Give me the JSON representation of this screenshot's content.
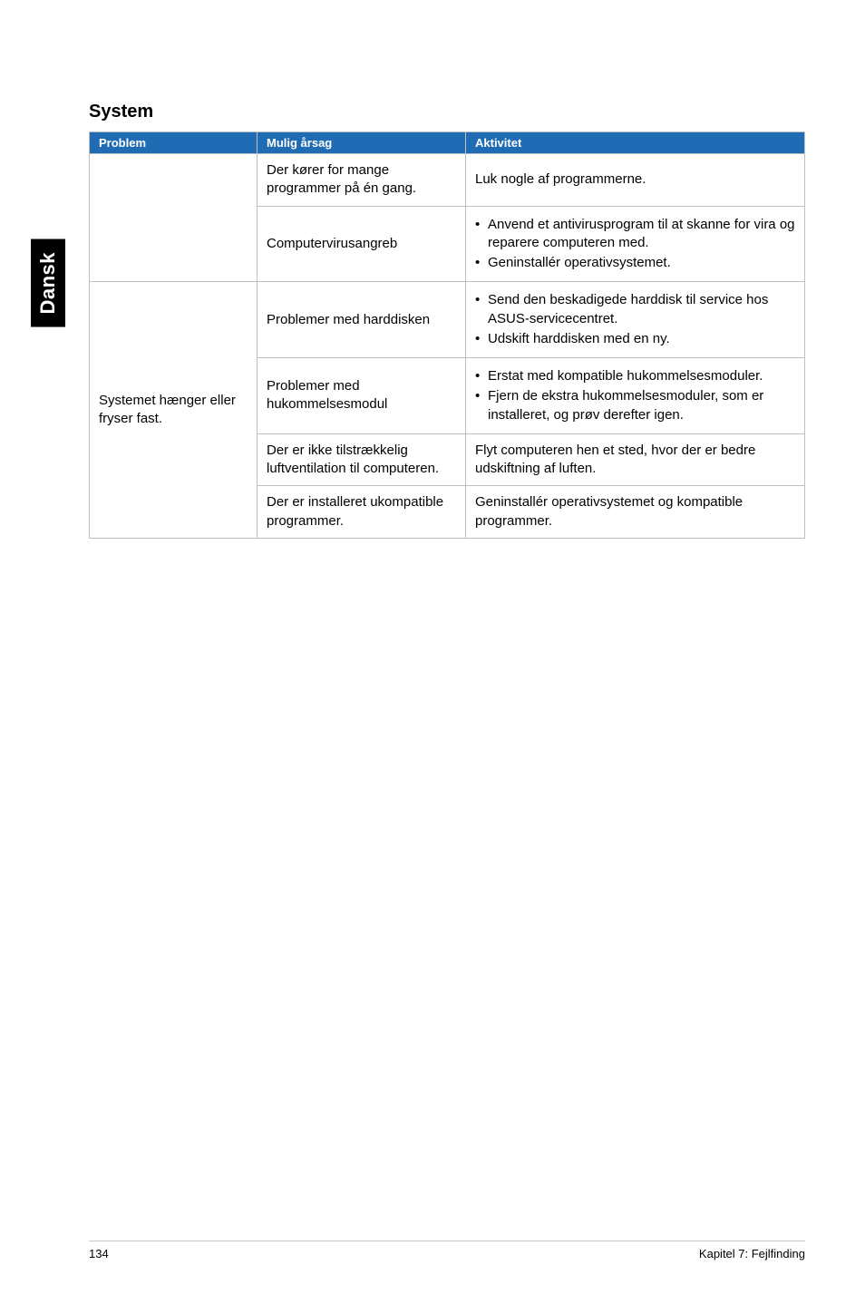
{
  "side_tab": "Dansk",
  "section_title": "System",
  "columns": {
    "problem": "Problem",
    "cause": "Mulig årsag",
    "action": "Aktivitet"
  },
  "rows": [
    {
      "problem": "",
      "cause": "Der kører for mange programmer på én gang.",
      "action_text": "Luk nogle af programmerne."
    },
    {
      "problem": "",
      "cause": "Computervirusangreb",
      "action_list": [
        "Anvend et antivirusprogram til at skanne for vira og reparere computeren med.",
        "Geninstallér operativsystemet."
      ]
    },
    {
      "problem": "Systemet hænger eller fryser fast.",
      "cause": "Problemer med harddisken",
      "action_list": [
        "Send den beskadigede harddisk til service hos ASUS-servicecentret.",
        "Udskift harddisken med en ny."
      ]
    },
    {
      "cause": "Problemer med hukommelsesmodul",
      "action_list": [
        "Erstat med kompatible hukommelsesmoduler.",
        "Fjern de ekstra hukommelsesmoduler, som er installeret, og prøv derefter igen."
      ]
    },
    {
      "cause": "Der er ikke tilstrækkelig luftventilation til computeren.",
      "action_text": "Flyt computeren hen et sted, hvor der er bedre udskiftning af luften."
    },
    {
      "cause": "Der er installeret ukompatible programmer.",
      "action_text": "Geninstallér operativsystemet og kompatible programmer."
    }
  ],
  "footer": {
    "page": "134",
    "chapter": "Kapitel 7: Fejlfinding"
  },
  "colors": {
    "header_bg": "#1f6bb4",
    "header_text": "#ffffff",
    "border": "#bfbfbf",
    "text": "#000000",
    "tab_bg": "#000000",
    "tab_text": "#ffffff",
    "page_bg": "#ffffff"
  },
  "fonts": {
    "title_size_pt": 15,
    "header_size_pt": 10,
    "cell_size_pt": 11,
    "footer_size_pt": 10
  }
}
